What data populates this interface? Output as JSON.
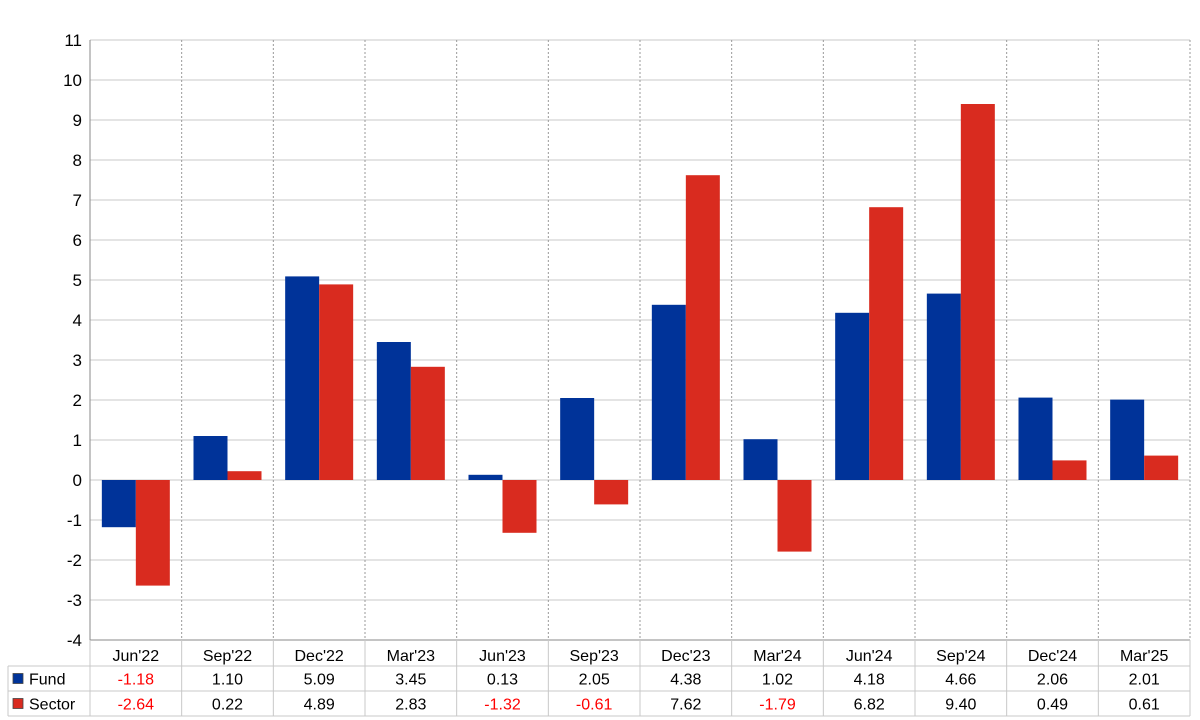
{
  "chart_data": {
    "type": "bar",
    "categories": [
      "Jun'22",
      "Sep'22",
      "Dec'22",
      "Mar'23",
      "Jun'23",
      "Sep'23",
      "Dec'23",
      "Mar'24",
      "Jun'24",
      "Sep'24",
      "Dec'24",
      "Mar'25"
    ],
    "series": [
      {
        "name": "Fund",
        "color": "#003399",
        "values": [
          -1.18,
          1.1,
          5.09,
          3.45,
          0.13,
          2.05,
          4.38,
          1.02,
          4.18,
          4.66,
          2.06,
          2.01
        ],
        "labels": [
          "-1.18",
          "1.10",
          "5.09",
          "3.45",
          "0.13",
          "2.05",
          "4.38",
          "1.02",
          "4.18",
          "4.66",
          "2.06",
          "2.01"
        ]
      },
      {
        "name": "Sector",
        "color": "#d92b1f",
        "values": [
          -2.64,
          0.22,
          4.89,
          2.83,
          -1.32,
          -0.61,
          7.62,
          -1.79,
          6.82,
          9.4,
          0.49,
          0.61
        ],
        "labels": [
          "-2.64",
          "0.22",
          "4.89",
          "2.83",
          "-1.32",
          "-0.61",
          "7.62",
          "-1.79",
          "6.82",
          "9.40",
          "0.49",
          "0.61"
        ]
      }
    ],
    "ylim": [
      -4,
      11
    ],
    "yticks": [
      "-4",
      "-3",
      "-2",
      "-1",
      "0",
      "1",
      "2",
      "3",
      "4",
      "5",
      "6",
      "7",
      "8",
      "9",
      "10",
      "11"
    ],
    "negative_value_color": "#ff0000",
    "grid": true,
    "legend": "data-table-left",
    "data_table": true
  }
}
